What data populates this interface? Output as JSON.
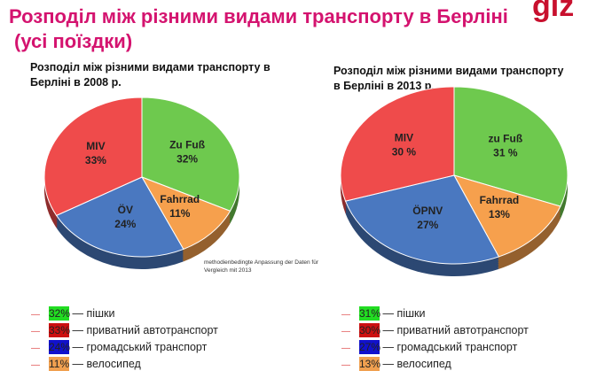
{
  "title_line1": "Розподіл між різними видами транспорту в Берліні",
  "title_line2": "(усі поїздки)",
  "logo": "giz",
  "note": "methodienbedingte Anpassung der Daten für Vergleich mit 2013",
  "charts": [
    {
      "title": "Розподіл між різними видами транспорту в Берліні в 2008 р.",
      "slices": [
        {
          "label": "Zu Fuß",
          "value": 32,
          "text": "32%",
          "color": "#6ec94e"
        },
        {
          "label": "Fahrrad",
          "value": 11,
          "text": "11%",
          "color": "#f6a04d"
        },
        {
          "label": "ÖV",
          "value": 24,
          "text": "24%",
          "color": "#4a78c0"
        },
        {
          "label": "MIV",
          "value": 33,
          "text": "33%",
          "color": "#ef4b4b"
        }
      ],
      "legend": [
        {
          "value": "32%",
          "text": "— пішки",
          "color": "#22dd22"
        },
        {
          "value": "33%",
          "text": "— приватний автотранспорт",
          "color": "#cc1111"
        },
        {
          "value": "24%",
          "text": "— громадський транспорт",
          "color": "#1111cc"
        },
        {
          "value": "11%",
          "text": "— велосипед",
          "color": "#f0a050"
        }
      ]
    },
    {
      "title": "Розподіл між різними видами транспорту в Берліні в 2013 р.",
      "slices": [
        {
          "label": "zu Fuß",
          "value": 31,
          "text": "31 %",
          "color": "#6ec94e"
        },
        {
          "label": "Fahrrad",
          "value": 13,
          "text": "13%",
          "color": "#f6a04d"
        },
        {
          "label": "ÖPNV",
          "value": 27,
          "text": "27%",
          "color": "#4a78c0"
        },
        {
          "label": "MIV",
          "value": 30,
          "text": "30 %",
          "color": "#ef4b4b"
        }
      ],
      "legend": [
        {
          "value": "31%",
          "text": "— пішки",
          "color": "#22dd22"
        },
        {
          "value": "30%",
          "text": "— приватний автотранспорт",
          "color": "#cc1111"
        },
        {
          "value": "27%",
          "text": "— громадський транспорт",
          "color": "#1111cc"
        },
        {
          "value": "13%",
          "text": "— велосипед",
          "color": "#f0a050"
        }
      ]
    }
  ]
}
